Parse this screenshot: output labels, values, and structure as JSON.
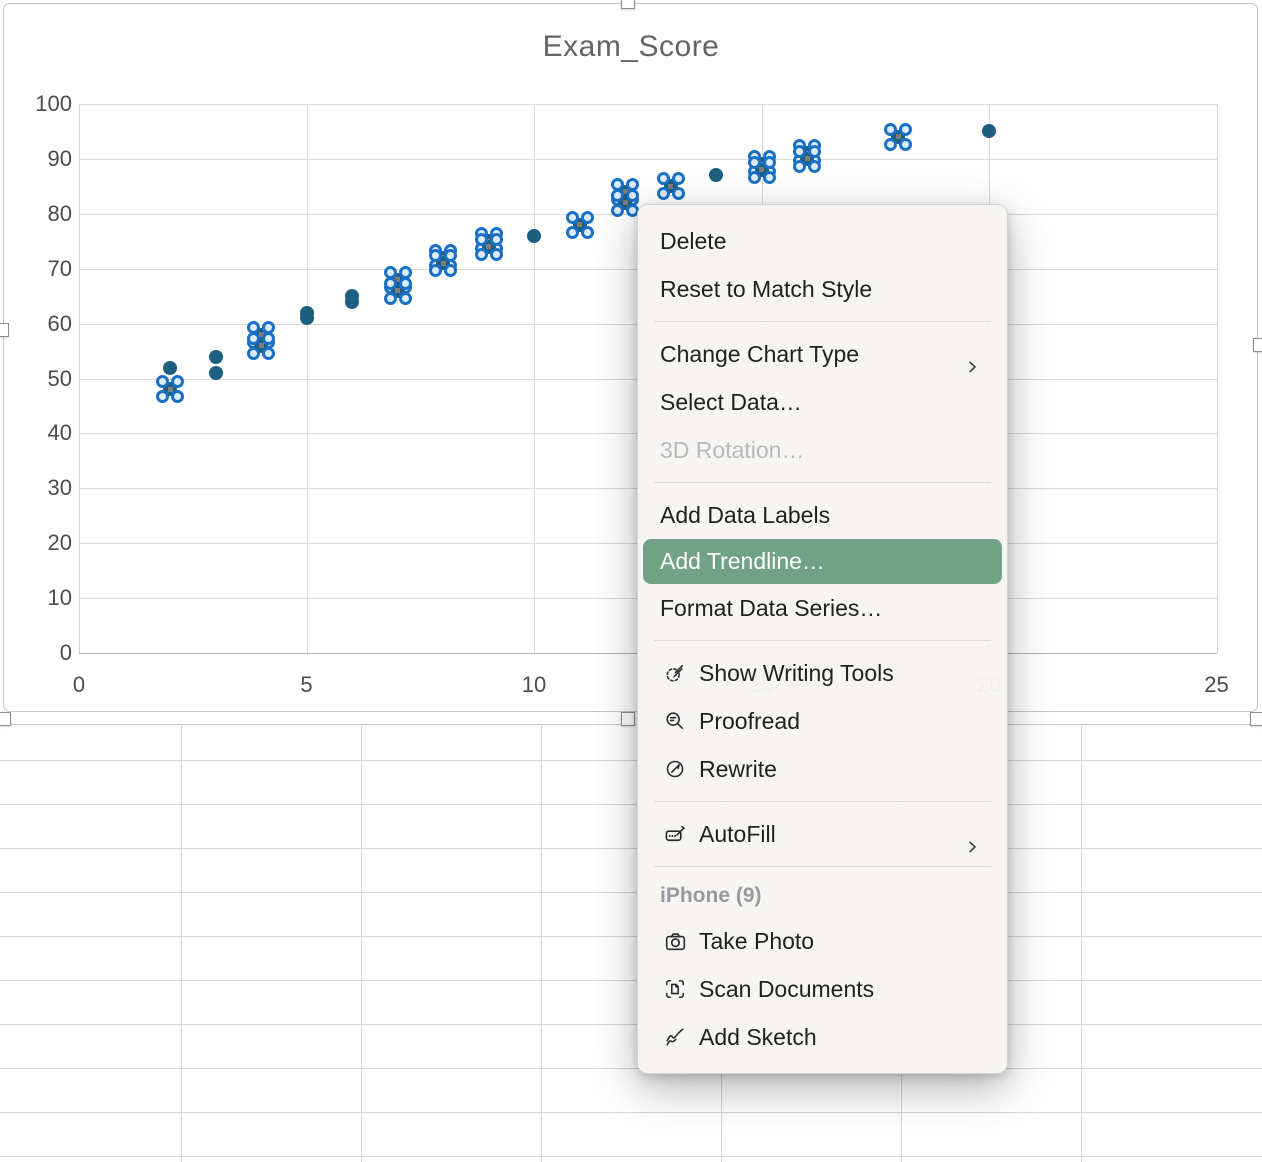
{
  "chart_data": {
    "type": "scatter",
    "title": "Exam_Score",
    "xlabel": "",
    "ylabel": "",
    "xlim": [
      0,
      25
    ],
    "ylim": [
      0,
      100
    ],
    "x_ticks": [
      0,
      5,
      10,
      15,
      20,
      25
    ],
    "y_ticks": [
      0,
      10,
      20,
      30,
      40,
      50,
      60,
      70,
      80,
      90,
      100
    ],
    "grid": true,
    "legend": false,
    "series_name": "Exam_Score",
    "points": [
      {
        "x": 2,
        "y": 52,
        "selected": false
      },
      {
        "x": 2,
        "y": 48,
        "selected": true
      },
      {
        "x": 3,
        "y": 54,
        "selected": false
      },
      {
        "x": 3,
        "y": 51,
        "selected": false
      },
      {
        "x": 4,
        "y": 58,
        "selected": true
      },
      {
        "x": 4,
        "y": 56,
        "selected": true
      },
      {
        "x": 5,
        "y": 62,
        "selected": false
      },
      {
        "x": 5,
        "y": 61,
        "selected": false
      },
      {
        "x": 6,
        "y": 65,
        "selected": false
      },
      {
        "x": 6,
        "y": 64,
        "selected": false
      },
      {
        "x": 7,
        "y": 68,
        "selected": true
      },
      {
        "x": 7,
        "y": 66,
        "selected": true
      },
      {
        "x": 8,
        "y": 72,
        "selected": true
      },
      {
        "x": 8,
        "y": 71,
        "selected": true
      },
      {
        "x": 9,
        "y": 75,
        "selected": true
      },
      {
        "x": 9,
        "y": 74,
        "selected": true
      },
      {
        "x": 10,
        "y": 76,
        "selected": false
      },
      {
        "x": 11,
        "y": 78,
        "selected": true
      },
      {
        "x": 12,
        "y": 84,
        "selected": true
      },
      {
        "x": 12,
        "y": 82,
        "selected": true
      },
      {
        "x": 13,
        "y": 85,
        "selected": true
      },
      {
        "x": 14,
        "y": 87,
        "selected": false
      },
      {
        "x": 15,
        "y": 89,
        "selected": true
      },
      {
        "x": 15,
        "y": 88,
        "selected": true
      },
      {
        "x": 16,
        "y": 91,
        "selected": true
      },
      {
        "x": 16,
        "y": 90,
        "selected": true
      },
      {
        "x": 18,
        "y": 94,
        "selected": true
      },
      {
        "x": 20,
        "y": 95,
        "selected": false
      }
    ]
  },
  "colors": {
    "marker_teal": "#1c5f80",
    "selection_handle_blue": "#1a70c6",
    "menu_highlight_green": "#72a286",
    "gridline_gray": "#d9d9d9"
  },
  "context_menu": {
    "items": [
      {
        "type": "item",
        "label": "Delete"
      },
      {
        "type": "item",
        "label": "Reset to Match Style"
      },
      {
        "type": "separator"
      },
      {
        "type": "item",
        "label": "Change Chart Type",
        "submenu": true
      },
      {
        "type": "item",
        "label": "Select Data…"
      },
      {
        "type": "item",
        "label": "3D Rotation…",
        "disabled": true
      },
      {
        "type": "separator"
      },
      {
        "type": "item",
        "label": "Add Data Labels"
      },
      {
        "type": "item",
        "label": "Add Trendline…",
        "highlighted": true
      },
      {
        "type": "item",
        "label": "Format Data Series…"
      },
      {
        "type": "separator"
      },
      {
        "type": "item",
        "label": "Show Writing Tools",
        "icon": "writing-tools-icon"
      },
      {
        "type": "item",
        "label": "Proofread",
        "icon": "proofread-icon"
      },
      {
        "type": "item",
        "label": "Rewrite",
        "icon": "rewrite-icon"
      },
      {
        "type": "separator"
      },
      {
        "type": "item",
        "label": "AutoFill",
        "icon": "autofill-icon",
        "submenu": true
      },
      {
        "type": "separator"
      },
      {
        "type": "header",
        "label": "iPhone (9)"
      },
      {
        "type": "item",
        "label": "Take Photo",
        "icon": "camera-icon"
      },
      {
        "type": "item",
        "label": "Scan Documents",
        "icon": "scan-documents-icon"
      },
      {
        "type": "item",
        "label": "Add Sketch",
        "icon": "sketch-icon"
      }
    ]
  }
}
